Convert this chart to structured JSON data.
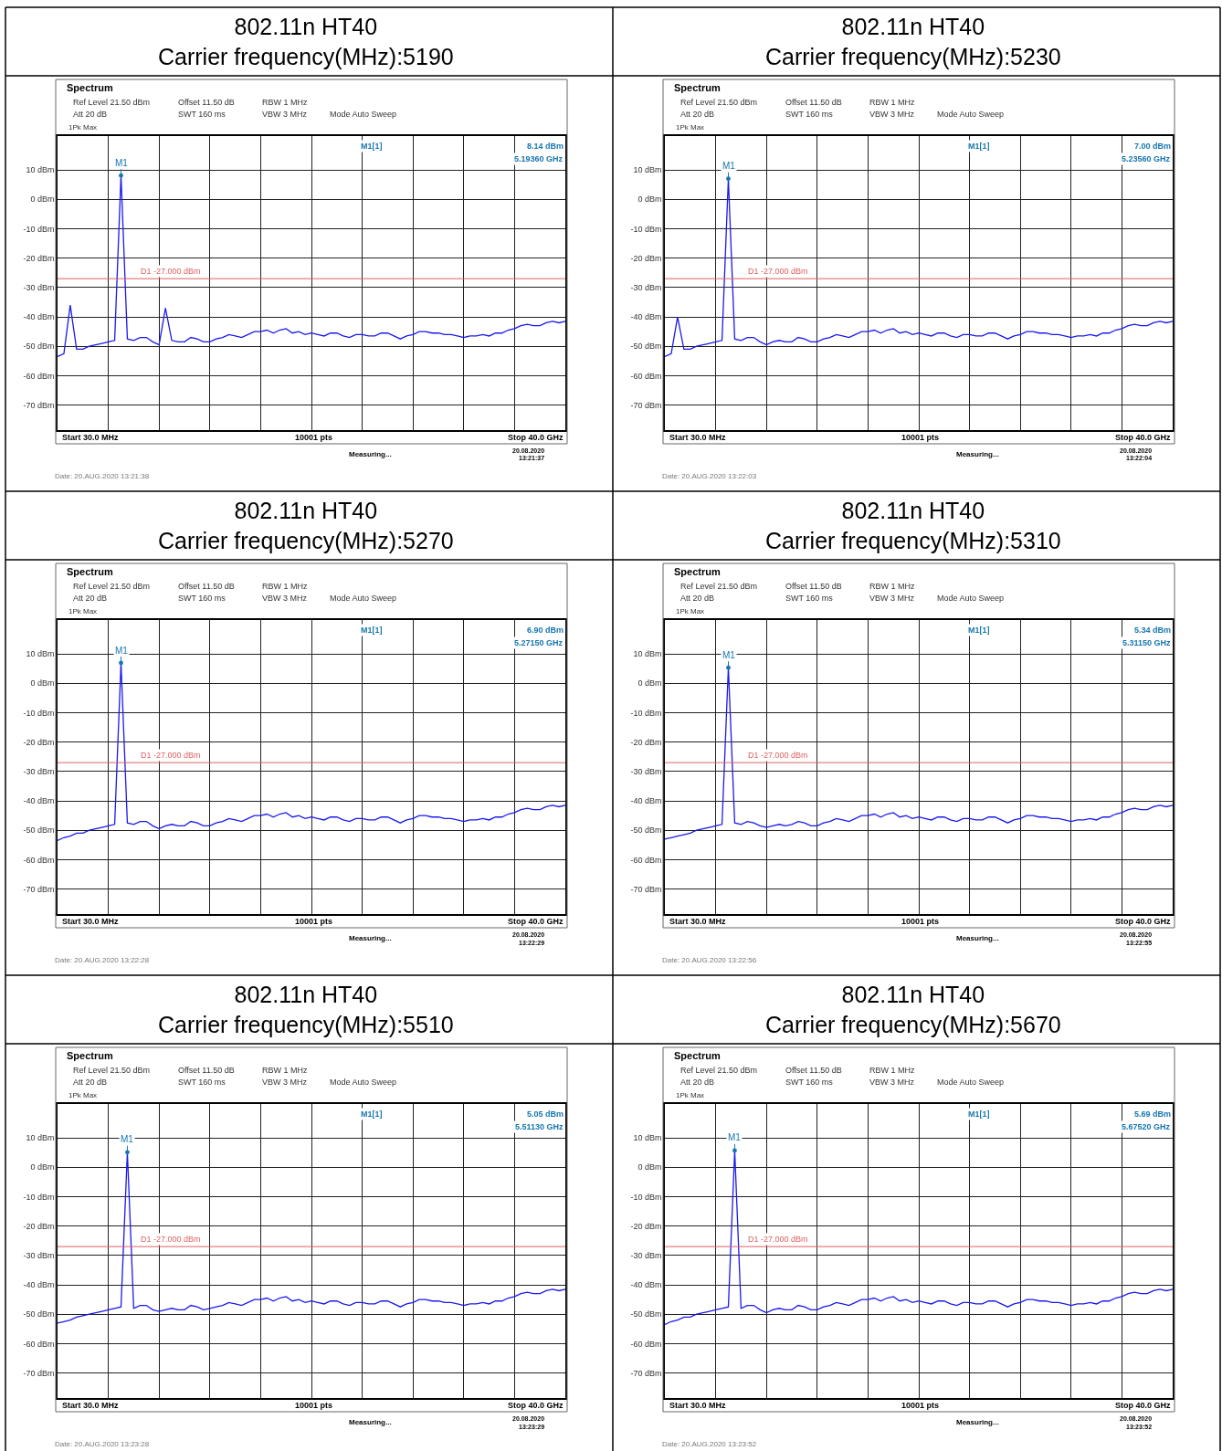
{
  "chart_data": [
    {
      "type": "line",
      "title": "802.11n HT40",
      "subtitle": "Carrier frequency(MHz):5190",
      "categories": [
        null,
        null,
        null,
        null,
        null,
        null,
        null,
        null,
        null,
        null,
        null,
        null,
        null,
        null,
        null,
        null,
        null,
        null,
        null,
        null,
        null,
        null,
        null,
        null,
        null,
        null,
        null,
        null,
        null,
        null,
        null,
        null,
        null,
        null,
        null,
        null,
        null,
        null,
        null,
        null,
        null,
        null,
        null,
        null,
        null,
        null,
        null,
        null,
        null,
        null,
        null,
        null,
        null,
        null,
        null,
        null,
        null,
        null,
        null,
        null,
        null,
        null,
        null,
        null,
        null,
        null,
        null,
        null,
        null,
        null,
        null,
        null,
        null,
        null,
        null,
        null,
        null,
        null,
        null,
        null,
        null
      ],
      "ylim": [
        -78.5,
        21.5
      ],
      "yticks": [
        {
          "value": 10,
          "label": "10 dBm"
        },
        {
          "value": 0,
          "label": "0 dBm"
        },
        {
          "value": -10,
          "label": "-10 dBm"
        },
        {
          "value": -20,
          "label": "-20 dBm"
        },
        {
          "value": -30,
          "label": "-30 dBm"
        },
        {
          "value": -40,
          "label": "-40 dBm"
        },
        {
          "value": -50,
          "label": "-50 dBm"
        },
        {
          "value": -60,
          "label": "-60 dBm"
        },
        {
          "value": -70,
          "label": "-70 dBm"
        }
      ],
      "tick_labels": "y",
      "grid": true,
      "marker": "none",
      "line_style": "solid",
      "ref_lines": [
        {
          "axis": "y",
          "value": -27,
          "label": "D1 -27.000 dBm",
          "color": "#e06060"
        }
      ],
      "series": [
        {
          "color": "#1a1aee",
          "values": [
            -53.5,
            -52.5,
            -36,
            -51,
            -51,
            -50,
            -49.5,
            -49,
            -48.5,
            -48,
            8.1,
            -47.5,
            -48,
            -47,
            -47,
            -48.5,
            -49.5,
            -37,
            -48,
            -48.5,
            -48.5,
            -47,
            -47.5,
            -48.5,
            -48.5,
            -47.5,
            -47,
            -46,
            -46.5,
            -47,
            -46,
            -45,
            -45,
            -44.5,
            -45.5,
            -44.5,
            -44,
            -45.5,
            -45,
            -46,
            -45.5,
            -46,
            -46.5,
            -45.5,
            -45.5,
            -46.5,
            -47,
            -46,
            -46,
            -46.5,
            -46.5,
            -45.5,
            -45.5,
            -46.5,
            -47.5,
            -46.5,
            -46,
            -45,
            -45,
            -45.5,
            -45.5,
            -46,
            -46,
            -46.5,
            -47,
            -46.5,
            -46.5,
            -46,
            -46.5,
            -45.5,
            -45.5,
            -44.5,
            -44,
            -43,
            -42.5,
            -43,
            -43,
            -42,
            -41.5,
            -42,
            -41.5
          ]
        }
      ],
      "annotations": [
        "Spectrum",
        "Ref Level 21.50 dBm",
        "Offset 11.50 dB",
        "RBW 1 MHz",
        "Att 20 dB",
        "SWT 160 ms",
        "VBW 3 MHz",
        "Mode Auto Sweep",
        "1Pk Max",
        "M1[1]",
        "8.14 dBm",
        "5.19360 GHz",
        "M1",
        "Start 30.0 MHz",
        "10001 pts",
        "Stop 40.0 GHz",
        "Measuring...",
        "20.08.2020",
        "13:21:37",
        "Date: 20.AUG.2020 13:21:38"
      ]
    },
    {
      "type": "line",
      "title": "802.11n HT40",
      "subtitle": "Carrier frequency(MHz):5230",
      "categories": [
        null,
        null,
        null,
        null,
        null,
        null,
        null,
        null,
        null,
        null,
        null,
        null,
        null,
        null,
        null,
        null,
        null,
        null,
        null,
        null,
        null,
        null,
        null,
        null,
        null,
        null,
        null,
        null,
        null,
        null,
        null,
        null,
        null,
        null,
        null,
        null,
        null,
        null,
        null,
        null,
        null,
        null,
        null,
        null,
        null,
        null,
        null,
        null,
        null,
        null,
        null,
        null,
        null,
        null,
        null,
        null,
        null,
        null,
        null,
        null,
        null,
        null,
        null,
        null,
        null,
        null,
        null,
        null,
        null,
        null,
        null,
        null,
        null,
        null,
        null,
        null,
        null,
        null,
        null,
        null,
        null
      ],
      "ylim": [
        -78.5,
        21.5
      ],
      "yticks": [
        {
          "value": 10,
          "label": "10 dBm"
        },
        {
          "value": 0,
          "label": "0 dBm"
        },
        {
          "value": -10,
          "label": "-10 dBm"
        },
        {
          "value": -20,
          "label": "-20 dBm"
        },
        {
          "value": -30,
          "label": "-30 dBm"
        },
        {
          "value": -40,
          "label": "-40 dBm"
        },
        {
          "value": -50,
          "label": "-50 dBm"
        },
        {
          "value": -60,
          "label": "-60 dBm"
        },
        {
          "value": -70,
          "label": "-70 dBm"
        }
      ],
      "tick_labels": "y",
      "grid": true,
      "marker": "none",
      "line_style": "solid",
      "ref_lines": [
        {
          "axis": "y",
          "value": -27,
          "label": "D1 -27.000 dBm",
          "color": "#e06060"
        }
      ],
      "series": [
        {
          "color": "#1a1aee",
          "values": [
            -53.5,
            -52.5,
            -40,
            -51,
            -51,
            -50,
            -49.5,
            -49,
            -48.5,
            -48,
            7.0,
            -47.5,
            -48,
            -47,
            -47,
            -48.5,
            -49.5,
            -48.5,
            -48,
            -48.5,
            -48.5,
            -47,
            -47.5,
            -48.5,
            -48.5,
            -47.5,
            -47,
            -46,
            -46.5,
            -47,
            -46,
            -45,
            -45,
            -44.5,
            -45.5,
            -44.5,
            -44,
            -45.5,
            -45,
            -46,
            -45.5,
            -46,
            -46.5,
            -45.5,
            -45.5,
            -46.5,
            -47,
            -46,
            -46,
            -46.5,
            -46.5,
            -45.5,
            -45.5,
            -46.5,
            -47.5,
            -46.5,
            -46,
            -45,
            -45,
            -45.5,
            -45.5,
            -46,
            -46,
            -46.5,
            -47,
            -46.5,
            -46.5,
            -46,
            -46.5,
            -45.5,
            -45.5,
            -44.5,
            -44,
            -43,
            -42.5,
            -43,
            -43,
            -42,
            -41.5,
            -42,
            -41.5
          ]
        }
      ],
      "annotations": [
        "Spectrum",
        "Ref Level 21.50 dBm",
        "Offset 11.50 dB",
        "RBW 1 MHz",
        "Att 20 dB",
        "SWT 160 ms",
        "VBW 3 MHz",
        "Mode Auto Sweep",
        "1Pk Max",
        "M1[1]",
        "7.00 dBm",
        "5.23560 GHz",
        "M1",
        "Start 30.0 MHz",
        "10001 pts",
        "Stop 40.0 GHz",
        "Measuring...",
        "20.08.2020",
        "13:22:04",
        "Date: 20.AUG.2020 13:22:03"
      ]
    },
    {
      "type": "line",
      "title": "802.11n HT40",
      "subtitle": "Carrier frequency(MHz):5270",
      "categories": [
        null,
        null,
        null,
        null,
        null,
        null,
        null,
        null,
        null,
        null,
        null,
        null,
        null,
        null,
        null,
        null,
        null,
        null,
        null,
        null,
        null,
        null,
        null,
        null,
        null,
        null,
        null,
        null,
        null,
        null,
        null,
        null,
        null,
        null,
        null,
        null,
        null,
        null,
        null,
        null,
        null,
        null,
        null,
        null,
        null,
        null,
        null,
        null,
        null,
        null,
        null,
        null,
        null,
        null,
        null,
        null,
        null,
        null,
        null,
        null,
        null,
        null,
        null,
        null,
        null,
        null,
        null,
        null,
        null,
        null,
        null,
        null,
        null,
        null,
        null,
        null,
        null,
        null,
        null,
        null,
        null
      ],
      "ylim": [
        -78.5,
        21.5
      ],
      "yticks": [
        {
          "value": 10,
          "label": "10 dBm"
        },
        {
          "value": 0,
          "label": "0 dBm"
        },
        {
          "value": -10,
          "label": "-10 dBm"
        },
        {
          "value": -20,
          "label": "-20 dBm"
        },
        {
          "value": -30,
          "label": "-30 dBm"
        },
        {
          "value": -40,
          "label": "-40 dBm"
        },
        {
          "value": -50,
          "label": "-50 dBm"
        },
        {
          "value": -60,
          "label": "-60 dBm"
        },
        {
          "value": -70,
          "label": "-70 dBm"
        }
      ],
      "tick_labels": "y",
      "grid": true,
      "marker": "none",
      "line_style": "solid",
      "ref_lines": [
        {
          "axis": "y",
          "value": -27,
          "label": "D1 -27.000 dBm",
          "color": "#e06060"
        }
      ],
      "series": [
        {
          "color": "#1a1aee",
          "values": [
            -53.5,
            -52.5,
            -52,
            -51,
            -51,
            -50,
            -49.5,
            -49,
            -48.5,
            -48,
            6.9,
            -47.5,
            -48,
            -47,
            -47,
            -48.5,
            -49.5,
            -48.5,
            -48,
            -48.5,
            -48.5,
            -47,
            -47.5,
            -48.5,
            -48.5,
            -47.5,
            -47,
            -46,
            -46.5,
            -47,
            -46,
            -45,
            -45,
            -44.5,
            -45.5,
            -44.5,
            -44,
            -45.5,
            -45,
            -46,
            -45.5,
            -46,
            -46.5,
            -45.5,
            -45.5,
            -46.5,
            -47,
            -46,
            -46,
            -46.5,
            -46.5,
            -45.5,
            -45.5,
            -46.5,
            -47.5,
            -46.5,
            -46,
            -45,
            -45,
            -45.5,
            -45.5,
            -46,
            -46,
            -46.5,
            -47,
            -46.5,
            -46.5,
            -46,
            -46.5,
            -45.5,
            -45.5,
            -44.5,
            -44,
            -43,
            -42.5,
            -43,
            -43,
            -42,
            -41.5,
            -42,
            -41.5
          ]
        }
      ],
      "annotations": [
        "Spectrum",
        "Ref Level 21.50 dBm",
        "Offset 11.50 dB",
        "RBW 1 MHz",
        "Att 20 dB",
        "SWT 160 ms",
        "VBW 3 MHz",
        "Mode Auto Sweep",
        "1Pk Max",
        "M1[1]",
        "6.90 dBm",
        "5.27150 GHz",
        "M1",
        "Start 30.0 MHz",
        "10001 pts",
        "Stop 40.0 GHz",
        "Measuring...",
        "20.08.2020",
        "13:22:29",
        "Date: 20.AUG.2020 13:22:28"
      ]
    },
    {
      "type": "line",
      "title": "802.11n HT40",
      "subtitle": "Carrier frequency(MHz):5310",
      "categories": [
        null,
        null,
        null,
        null,
        null,
        null,
        null,
        null,
        null,
        null,
        null,
        null,
        null,
        null,
        null,
        null,
        null,
        null,
        null,
        null,
        null,
        null,
        null,
        null,
        null,
        null,
        null,
        null,
        null,
        null,
        null,
        null,
        null,
        null,
        null,
        null,
        null,
        null,
        null,
        null,
        null,
        null,
        null,
        null,
        null,
        null,
        null,
        null,
        null,
        null,
        null,
        null,
        null,
        null,
        null,
        null,
        null,
        null,
        null,
        null,
        null,
        null,
        null,
        null,
        null,
        null,
        null,
        null,
        null,
        null,
        null,
        null,
        null,
        null,
        null,
        null,
        null,
        null,
        null,
        null,
        null
      ],
      "ylim": [
        -78.5,
        21.5
      ],
      "yticks": [
        {
          "value": 10,
          "label": "10 dBm"
        },
        {
          "value": 0,
          "label": "0 dBm"
        },
        {
          "value": -10,
          "label": "-10 dBm"
        },
        {
          "value": -20,
          "label": "-20 dBm"
        },
        {
          "value": -30,
          "label": "-30 dBm"
        },
        {
          "value": -40,
          "label": "-40 dBm"
        },
        {
          "value": -50,
          "label": "-50 dBm"
        },
        {
          "value": -60,
          "label": "-60 dBm"
        },
        {
          "value": -70,
          "label": "-70 dBm"
        }
      ],
      "tick_labels": "y",
      "grid": true,
      "marker": "none",
      "line_style": "solid",
      "ref_lines": [
        {
          "axis": "y",
          "value": -27,
          "label": "D1 -27.000 dBm",
          "color": "#e06060"
        }
      ],
      "series": [
        {
          "color": "#1a1aee",
          "values": [
            -53,
            -52.5,
            -52,
            -51.5,
            -51,
            -50,
            -49.5,
            -49,
            -48.5,
            -48,
            5.3,
            -47.5,
            -48,
            -47,
            -47.5,
            -48.5,
            -49,
            -48.5,
            -48,
            -48.5,
            -48,
            -47,
            -47.5,
            -48.5,
            -48.5,
            -47.5,
            -47,
            -46,
            -46.5,
            -47,
            -46,
            -45,
            -45,
            -44.5,
            -45.5,
            -44.5,
            -44,
            -45.5,
            -45,
            -46,
            -45.5,
            -46,
            -46.5,
            -45.5,
            -45.5,
            -46.5,
            -47,
            -46,
            -46,
            -46.5,
            -46.5,
            -45.5,
            -45.5,
            -46.5,
            -47.5,
            -46.5,
            -46,
            -45,
            -45,
            -45.5,
            -45.5,
            -46,
            -46,
            -46.5,
            -47,
            -46.5,
            -46.5,
            -46,
            -46.5,
            -45.5,
            -45.5,
            -44.5,
            -44,
            -43,
            -42.5,
            -43,
            -43,
            -42,
            -41.5,
            -42,
            -41.5
          ]
        }
      ],
      "annotations": [
        "Spectrum",
        "Ref Level 21.50 dBm",
        "Offset 11.50 dB",
        "RBW 1 MHz",
        "Att 20 dB",
        "SWT 160 ms",
        "VBW 3 MHz",
        "Mode Auto Sweep",
        "1Pk Max",
        "M1[1]",
        "5.34 dBm",
        "5.31150 GHz",
        "M1",
        "Start 30.0 MHz",
        "10001 pts",
        "Stop 40.0 GHz",
        "Measuring...",
        "20.08.2020",
        "13:22:55",
        "Date: 20.AUG.2020 13:22:56"
      ]
    },
    {
      "type": "line",
      "title": "802.11n HT40",
      "subtitle": "Carrier frequency(MHz):5510",
      "categories": [
        null,
        null,
        null,
        null,
        null,
        null,
        null,
        null,
        null,
        null,
        null,
        null,
        null,
        null,
        null,
        null,
        null,
        null,
        null,
        null,
        null,
        null,
        null,
        null,
        null,
        null,
        null,
        null,
        null,
        null,
        null,
        null,
        null,
        null,
        null,
        null,
        null,
        null,
        null,
        null,
        null,
        null,
        null,
        null,
        null,
        null,
        null,
        null,
        null,
        null,
        null,
        null,
        null,
        null,
        null,
        null,
        null,
        null,
        null,
        null,
        null,
        null,
        null,
        null,
        null,
        null,
        null,
        null,
        null,
        null,
        null,
        null,
        null,
        null,
        null,
        null,
        null,
        null,
        null,
        null,
        null
      ],
      "ylim": [
        -78.5,
        21.5
      ],
      "yticks": [
        {
          "value": 10,
          "label": "10 dBm"
        },
        {
          "value": 0,
          "label": "0 dBm"
        },
        {
          "value": -10,
          "label": "-10 dBm"
        },
        {
          "value": -20,
          "label": "-20 dBm"
        },
        {
          "value": -30,
          "label": "-30 dBm"
        },
        {
          "value": -40,
          "label": "-40 dBm"
        },
        {
          "value": -50,
          "label": "-50 dBm"
        },
        {
          "value": -60,
          "label": "-60 dBm"
        },
        {
          "value": -70,
          "label": "-70 dBm"
        }
      ],
      "tick_labels": "y",
      "grid": true,
      "marker": "none",
      "line_style": "solid",
      "ref_lines": [
        {
          "axis": "y",
          "value": -27,
          "label": "D1 -27.000 dBm",
          "color": "#e06060"
        }
      ],
      "series": [
        {
          "color": "#1a1aee",
          "values": [
            -53,
            -52.5,
            -52,
            -51,
            -50.5,
            -50,
            -49.5,
            -49,
            -48.5,
            -48,
            -47.5,
            5.1,
            -48,
            -47,
            -47,
            -48.5,
            -49,
            -48.5,
            -48,
            -48.5,
            -48.5,
            -47,
            -47.5,
            -48.5,
            -48,
            -47.5,
            -47,
            -46,
            -46.5,
            -47,
            -46,
            -45,
            -45,
            -44.5,
            -45.5,
            -44.5,
            -44,
            -45.5,
            -45,
            -46,
            -45.5,
            -46,
            -46.5,
            -45.5,
            -45.5,
            -46.5,
            -47,
            -46,
            -46,
            -46.5,
            -46.5,
            -45.5,
            -45.5,
            -46.5,
            -47.5,
            -46.5,
            -46,
            -45,
            -45,
            -45.5,
            -45.5,
            -46,
            -46,
            -46.5,
            -47,
            -46.5,
            -46.5,
            -46,
            -46.5,
            -45.5,
            -45.5,
            -44.5,
            -44,
            -43,
            -42.5,
            -43,
            -43,
            -42,
            -41.5,
            -42,
            -41.5
          ]
        }
      ],
      "annotations": [
        "Spectrum",
        "Ref Level 21.50 dBm",
        "Offset 11.50 dB",
        "RBW 1 MHz",
        "Att 20 dB",
        "SWT 160 ms",
        "VBW 3 MHz",
        "Mode Auto Sweep",
        "1Pk Max",
        "M1[1]",
        "5.05 dBm",
        "5.51130 GHz",
        "M1",
        "Start 30.0 MHz",
        "10001 pts",
        "Stop 40.0 GHz",
        "Measuring...",
        "20.08.2020",
        "13:23:29",
        "Date: 20.AUG.2020 13:23:28"
      ]
    },
    {
      "type": "line",
      "title": "802.11n HT40",
      "subtitle": "Carrier frequency(MHz):5670",
      "categories": [
        null,
        null,
        null,
        null,
        null,
        null,
        null,
        null,
        null,
        null,
        null,
        null,
        null,
        null,
        null,
        null,
        null,
        null,
        null,
        null,
        null,
        null,
        null,
        null,
        null,
        null,
        null,
        null,
        null,
        null,
        null,
        null,
        null,
        null,
        null,
        null,
        null,
        null,
        null,
        null,
        null,
        null,
        null,
        null,
        null,
        null,
        null,
        null,
        null,
        null,
        null,
        null,
        null,
        null,
        null,
        null,
        null,
        null,
        null,
        null,
        null,
        null,
        null,
        null,
        null,
        null,
        null,
        null,
        null,
        null,
        null,
        null,
        null,
        null,
        null,
        null,
        null,
        null,
        null,
        null,
        null
      ],
      "ylim": [
        -78.5,
        21.5
      ],
      "yticks": [
        {
          "value": 10,
          "label": "10 dBm"
        },
        {
          "value": 0,
          "label": "0 dBm"
        },
        {
          "value": -10,
          "label": "-10 dBm"
        },
        {
          "value": -20,
          "label": "-20 dBm"
        },
        {
          "value": -30,
          "label": "-30 dBm"
        },
        {
          "value": -40,
          "label": "-40 dBm"
        },
        {
          "value": -50,
          "label": "-50 dBm"
        },
        {
          "value": -60,
          "label": "-60 dBm"
        },
        {
          "value": -70,
          "label": "-70 dBm"
        }
      ],
      "tick_labels": "y",
      "grid": true,
      "marker": "none",
      "line_style": "solid",
      "ref_lines": [
        {
          "axis": "y",
          "value": -27,
          "label": "D1 -27.000 dBm",
          "color": "#e06060"
        }
      ],
      "series": [
        {
          "color": "#1a1aee",
          "values": [
            -53.5,
            -52.5,
            -52,
            -51,
            -51,
            -50,
            -49.5,
            -49,
            -48.5,
            -48,
            -47.5,
            5.7,
            -48,
            -47,
            -47,
            -48.5,
            -49.5,
            -48.5,
            -48,
            -48.5,
            -48.5,
            -47,
            -47.5,
            -48.5,
            -48.5,
            -47.5,
            -47,
            -46,
            -46.5,
            -47,
            -46,
            -45,
            -45,
            -44.5,
            -45.5,
            -44.5,
            -44,
            -45.5,
            -45,
            -46,
            -45.5,
            -46,
            -46.5,
            -45.5,
            -45.5,
            -46.5,
            -47,
            -46,
            -46,
            -46.5,
            -46.5,
            -45.5,
            -45.5,
            -46.5,
            -47.5,
            -46.5,
            -46,
            -45,
            -45,
            -45.5,
            -45.5,
            -46,
            -46,
            -46.5,
            -47,
            -46.5,
            -46.5,
            -46,
            -46.5,
            -45.5,
            -45.5,
            -44.5,
            -44,
            -43,
            -42.5,
            -43,
            -43,
            -42,
            -41.5,
            -42,
            -41.5
          ]
        }
      ],
      "annotations": [
        "Spectrum",
        "Ref Level 21.50 dBm",
        "Offset 11.50 dB",
        "RBW 1 MHz",
        "Att 20 dB",
        "SWT 160 ms",
        "VBW 3 MHz",
        "Mode Auto Sweep",
        "1Pk Max",
        "M1[1]",
        "5.69 dBm",
        "5.67520 GHz",
        "M1",
        "Start 30.0 MHz",
        "10001 pts",
        "Stop 40.0 GHz",
        "Measuring...",
        "20.08.2020",
        "13:23:52",
        "Date: 20.AUG.2020 13:23:52"
      ]
    }
  ]
}
